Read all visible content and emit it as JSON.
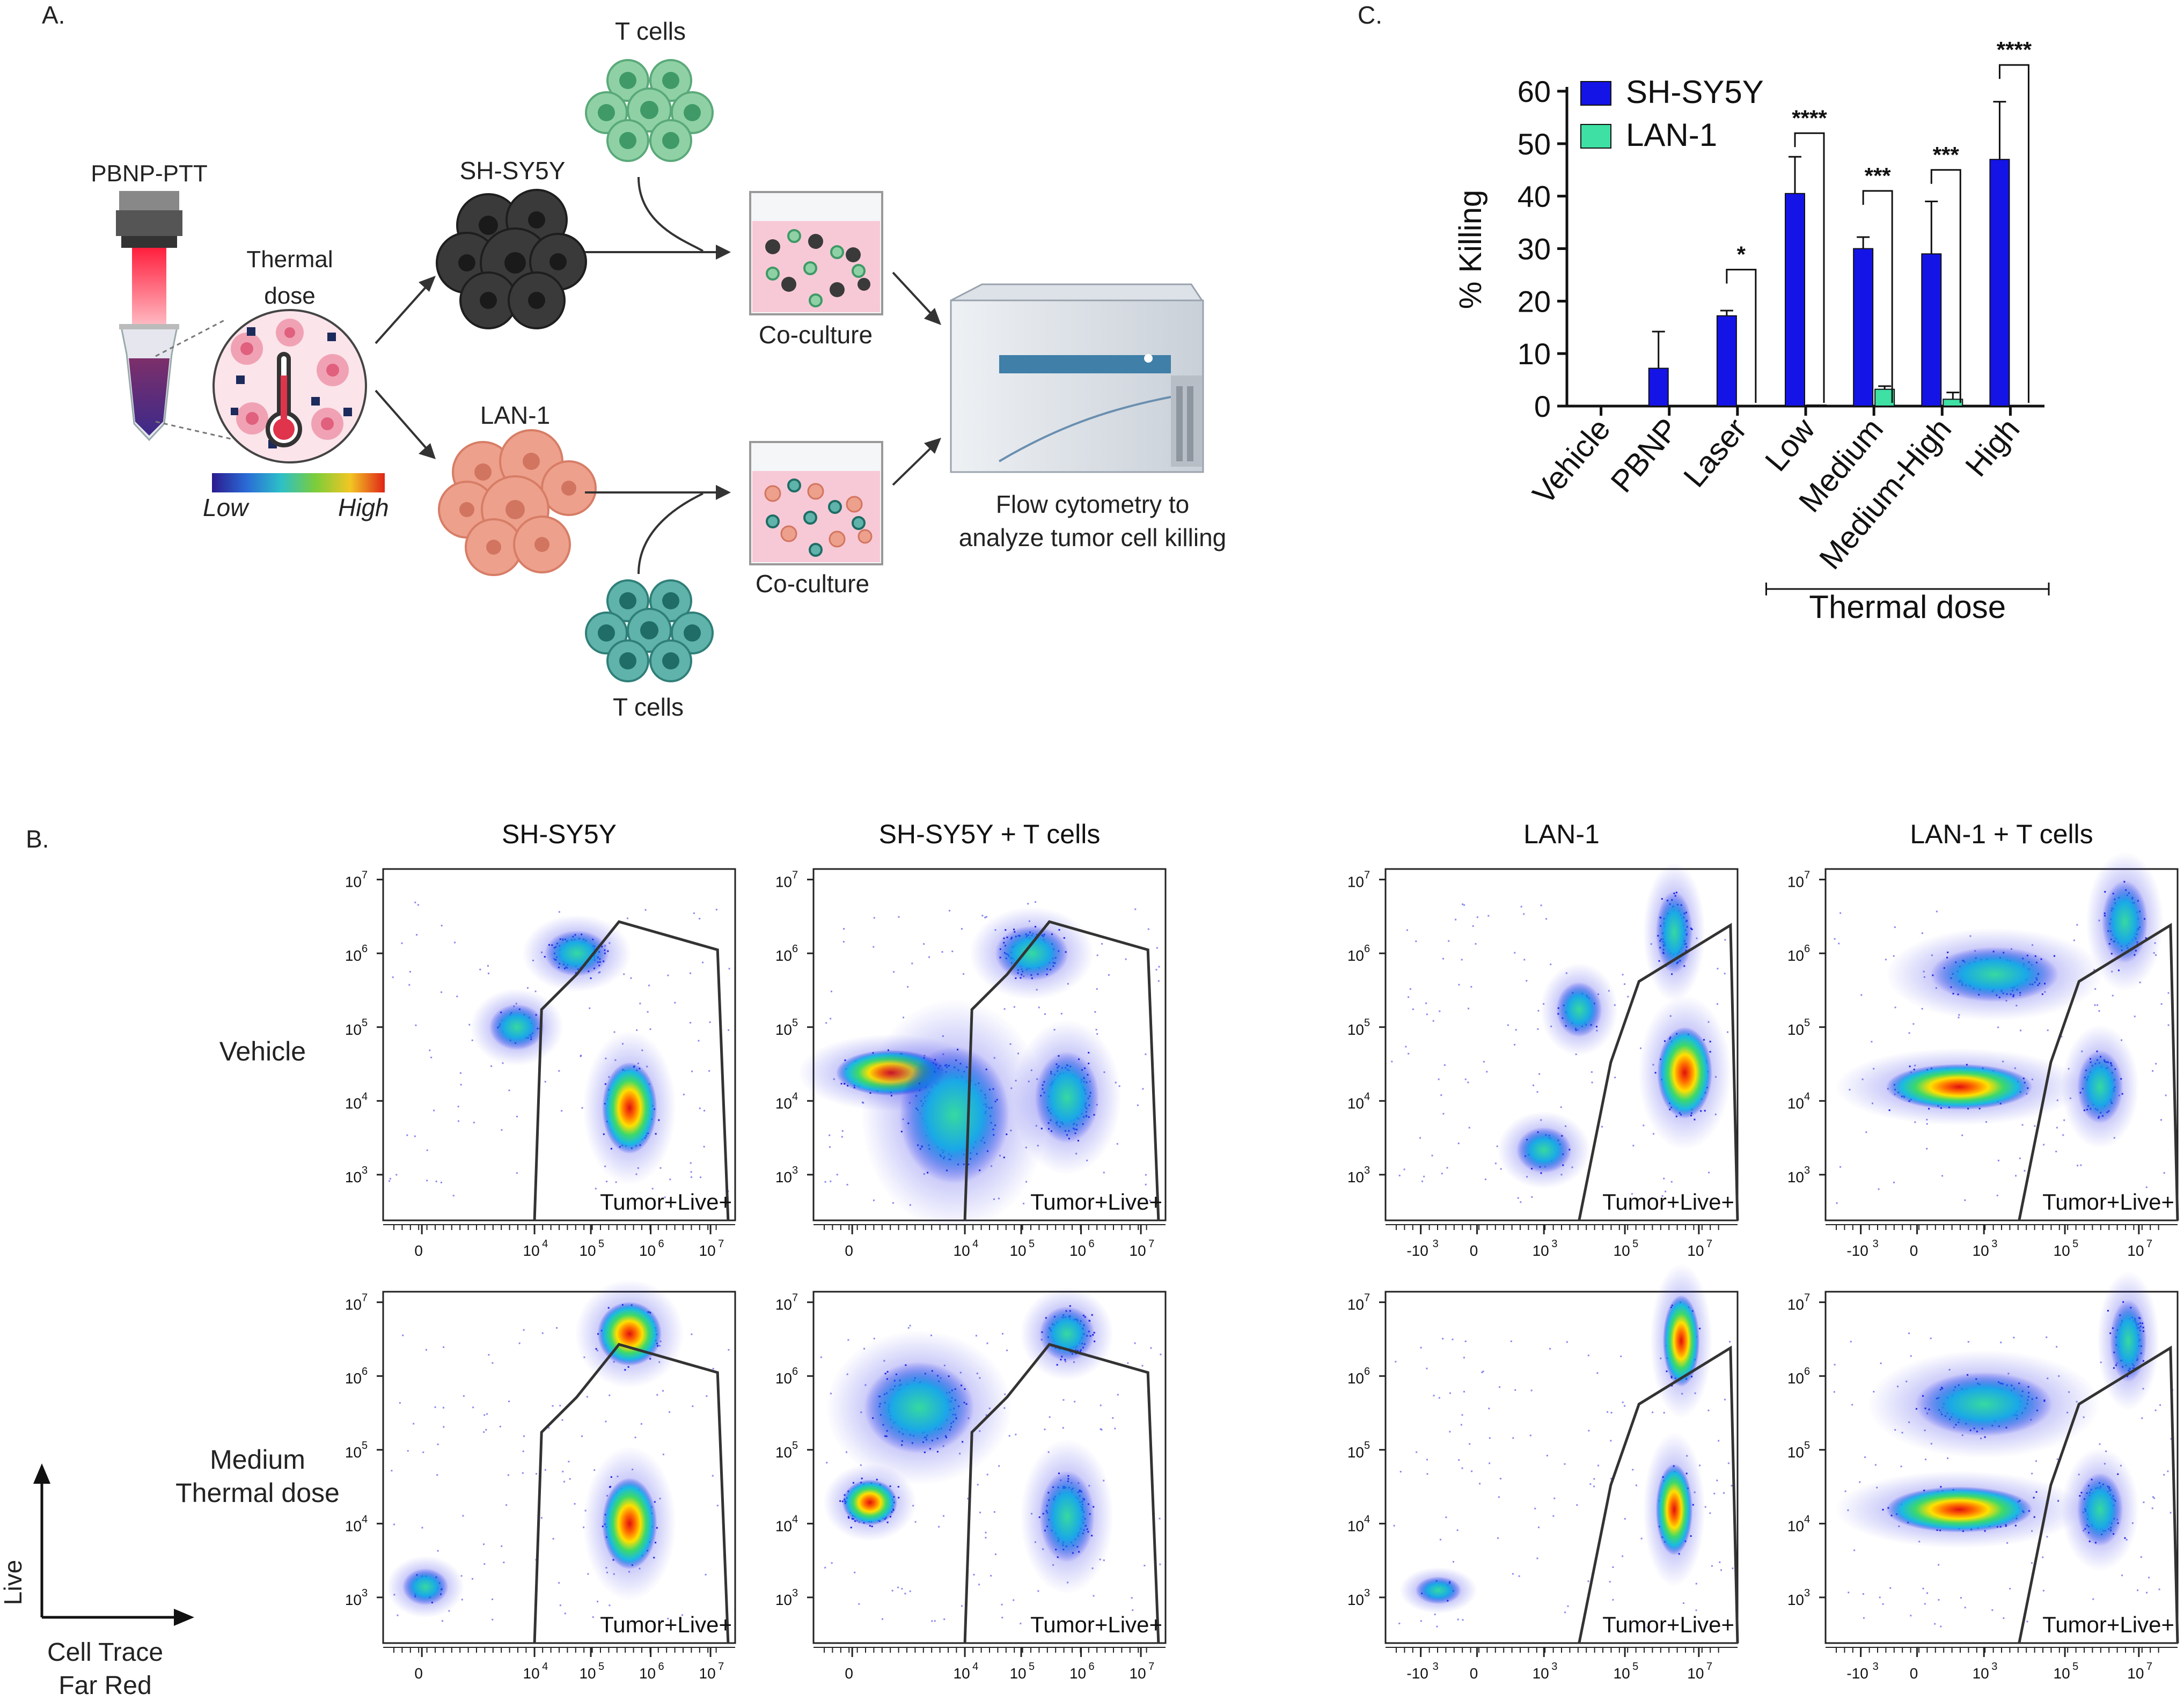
{
  "panels": {
    "A": {
      "letter": "A.",
      "laser_label": "PBNP-PTT",
      "thermal_line1": "Thermal",
      "thermal_line2": "dose",
      "scale_low": "Low",
      "scale_high": "High",
      "cell_top": "SH-SY5Y",
      "cell_bottom": "LAN-1",
      "tcells_top": "T cells",
      "tcells_bottom": "T cells",
      "coculture_top": "Co-culture",
      "coculture_bottom": "Co-culture",
      "flow_line1": "Flow cytometry to",
      "flow_line2": "analyze tumor cell killing"
    },
    "B": {
      "letter": "B.",
      "col_titles": [
        "SH-SY5Y",
        "SH-SY5Y + T cells",
        "LAN-1",
        "LAN-1 + T cells"
      ],
      "row_vehicle": "Vehicle",
      "row_medium_1": "Medium",
      "row_medium_2": "Thermal dose",
      "gate_label": "Tumor+Live+",
      "axis_y": "Live",
      "axis_x1": "Cell Trace",
      "axis_x2": "Far Red",
      "y_ticks": [
        "10",
        "10",
        "10",
        "10",
        "10"
      ],
      "y_exps": [
        "3",
        "4",
        "5",
        "6",
        "7"
      ],
      "x_ticks_sh": [
        {
          "b": "0",
          "e": ""
        },
        {
          "b": "10",
          "e": "4"
        },
        {
          "b": "10",
          "e": "5"
        },
        {
          "b": "10",
          "e": "6"
        },
        {
          "b": "10",
          "e": "7"
        }
      ],
      "x_ticks_lan": [
        {
          "b": "-10",
          "e": "3"
        },
        {
          "b": "0",
          "e": ""
        },
        {
          "b": "10",
          "e": "3"
        },
        {
          "b": "10",
          "e": "5"
        },
        {
          "b": "10",
          "e": "7"
        }
      ]
    },
    "C": {
      "letter": "C."
    }
  },
  "chart_data": {
    "type": "bar",
    "ylabel": "% Killing",
    "ylim": [
      0,
      60
    ],
    "yticks": [
      "0",
      "10",
      "20",
      "30",
      "40",
      "50",
      "60"
    ],
    "categories": [
      "Vehicle",
      "PBNP",
      "Laser",
      "Low",
      "Medium",
      "Medium-High",
      "High"
    ],
    "series": [
      {
        "name": "SH-SY5Y",
        "color": "#1414e6",
        "values": [
          0,
          7.2,
          17.2,
          40.5,
          30,
          29,
          47
        ],
        "err": [
          0,
          7,
          1,
          7,
          2.2,
          10,
          11
        ]
      },
      {
        "name": "LAN-1",
        "color": "#3ee0a4",
        "values": [
          0,
          0,
          0,
          0.2,
          3.2,
          1.3,
          0
        ],
        "err": [
          0,
          0,
          0,
          0,
          0.6,
          1.3,
          0
        ]
      }
    ],
    "significance": [
      {
        "category": "Laser",
        "label": "*",
        "bracket_top": 26
      },
      {
        "category": "Low",
        "label": "****",
        "bracket_top": 52
      },
      {
        "category": "Medium",
        "label": "***",
        "bracket_top": 41
      },
      {
        "category": "Medium-High",
        "label": "***",
        "bracket_top": 45
      },
      {
        "category": "High",
        "label": "****",
        "bracket_top": 65
      }
    ],
    "group_label": "Thermal dose",
    "group_categories": [
      "Low",
      "High"
    ]
  },
  "colors": {
    "sh_cells": "#3a3a3a",
    "lan_cells": "#e8957f",
    "tcells_top": "#6cc08c",
    "tcells_bottom": "#3c9a90",
    "well_media": "#f7c9d6"
  }
}
